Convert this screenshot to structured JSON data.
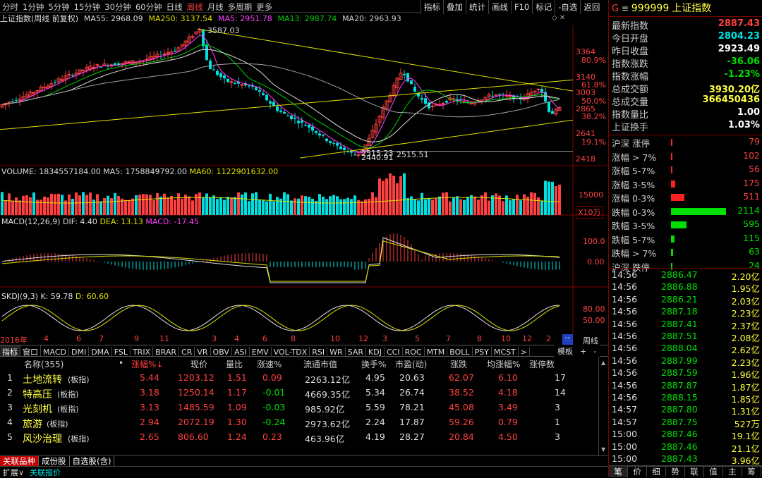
{
  "colors": {
    "up": "#ff4040",
    "down": "#00e0e0",
    "ma_white": "#e0e0e0",
    "ma_yellow": "#e0e000",
    "ma_magenta": "#ff40ff",
    "ma_green": "#00d000",
    "text_yellow": "#ffff40",
    "panel_border": "#800000"
  },
  "toolbar": {
    "periods": [
      "分时",
      "1分钟",
      "5分钟",
      "15分钟",
      "30分钟",
      "60分钟",
      "日线",
      "周线",
      "月线",
      "多周期",
      "更多"
    ],
    "active": "周线",
    "tools": [
      "指标",
      "叠加",
      "统计",
      "画线",
      "F10",
      "标记",
      "-自选",
      "返回"
    ]
  },
  "chart_title": {
    "name": "上证指数(周线 前复权)",
    "ma55": "MA55: 2968.09",
    "ma250": "MA250: 3137.54",
    "ma5": "MA5: 2951.78",
    "ma13": "MA13: 2987.74",
    "ma20": "MA20: 2963.93"
  },
  "price_axis": {
    "ticks": [
      "3364",
      "3140",
      "3003",
      "2865",
      "2641",
      "2418"
    ],
    "pcts": [
      "80.9%",
      "61.8%",
      "50.0%",
      "38.2%",
      "19.1%"
    ],
    "high_label": "3587.03",
    "low_label": "2515.51",
    "low_label2": "2440.91",
    "low_label3": "2515.23"
  },
  "volume": {
    "title": "VOLUME: 1834557184.00",
    "ma5": "MA5: 1758849792.00",
    "ma60": "MA60: 1122901632.00",
    "tick": "15000",
    "unit": "X10万"
  },
  "macd": {
    "title": "MACD(12,26,9)",
    "dif": "DIF: 4.40",
    "dea": "DEA: 13.13",
    "macd": "MACD: -17.45",
    "ticks": [
      "100.0",
      "0.00"
    ]
  },
  "skdj": {
    "title": "SKDJ(9,3)",
    "k": "K: 59.78",
    "d": "D: 60.60",
    "ticks": [
      "80.00",
      "50.00"
    ]
  },
  "xaxis": {
    "labels": [
      "2016年",
      "4",
      "6",
      "7",
      "9",
      "11",
      "3",
      "4",
      "6",
      "8",
      "10",
      "12",
      "3",
      "5",
      "7",
      "8",
      "10",
      "12",
      "2"
    ]
  },
  "xaxis_right": {
    "unit": "周线"
  },
  "indicator_tabs": {
    "items": [
      "指标",
      "窗口",
      "MACD",
      "DMI",
      "DMA",
      "FSL",
      "TRIX",
      "BRAR",
      "CR",
      "VR",
      "OBV",
      "ASI",
      "EMV",
      "VOL-TDX",
      "RSI",
      "WR",
      "SAR",
      "KDJ",
      "CCI",
      "ROC",
      "MTM",
      "BOLL",
      "PSY",
      "MCST",
      ">"
    ],
    "right": [
      "模板",
      "+",
      "-"
    ]
  },
  "table": {
    "headers": [
      "名称(355)",
      "•",
      "涨幅%↓",
      "现价",
      "量比",
      "涨速%",
      "流通市值",
      "换手%",
      "市盈(动)",
      "涨跌",
      "均涨幅%",
      "涨停数"
    ],
    "rows": [
      {
        "idx": "1",
        "name": "土地流转",
        "tag": "(板指)",
        "chg": "5.44",
        "price": "1203.12",
        "vr": "1.51",
        "speed": "0.09",
        "cap": "2263.12亿",
        "turn": "4.95",
        "pe": "20.63",
        "diff": "62.07",
        "avg": "6.10",
        "limit": "17"
      },
      {
        "idx": "2",
        "name": "特高压",
        "tag": "(板指)",
        "chg": "3.18",
        "price": "1250.14",
        "vr": "1.17",
        "speed": "-0.01",
        "cap": "4669.35亿",
        "turn": "5.34",
        "pe": "26.74",
        "diff": "38.52",
        "avg": "4.18",
        "limit": "14"
      },
      {
        "idx": "3",
        "name": "光刻机",
        "tag": "(板指)",
        "chg": "3.13",
        "price": "1485.59",
        "vr": "1.09",
        "speed": "-0.03",
        "cap": "985.92亿",
        "turn": "5.59",
        "pe": "78.21",
        "diff": "45.08",
        "avg": "3.49",
        "limit": "3"
      },
      {
        "idx": "4",
        "name": "旅游",
        "tag": "(板指)",
        "chg": "2.94",
        "price": "2072.19",
        "vr": "1.30",
        "speed": "-0.24",
        "cap": "2973.62亿",
        "turn": "2.24",
        "pe": "17.87",
        "diff": "59.26",
        "avg": "0.79",
        "limit": "1"
      },
      {
        "idx": "5",
        "name": "风沙治理",
        "tag": "(板指)",
        "chg": "2.65",
        "price": "806.60",
        "vr": "1.24",
        "speed": "0.23",
        "cap": "463.96亿",
        "turn": "4.19",
        "pe": "28.27",
        "diff": "20.84",
        "avg": "4.50",
        "limit": "3"
      }
    ]
  },
  "bottom_tabs": [
    "关联品种",
    "成份股",
    "自选股(含)"
  ],
  "status": [
    "扩展∨",
    "关联报价"
  ],
  "right_panel": {
    "g": "G",
    "code": "999999",
    "name": "上证指数",
    "stats": [
      {
        "k": "最新指数",
        "v": "2887.43",
        "c": "up"
      },
      {
        "k": "今日开盘",
        "v": "2804.23",
        "c": "down"
      },
      {
        "k": "昨日收盘",
        "v": "2923.49",
        "c": "white"
      },
      {
        "k": "指数涨跌",
        "v": "-36.06",
        "c": "green"
      },
      {
        "k": "指数涨幅",
        "v": "-1.23%",
        "c": "green"
      },
      {
        "k": "总成交额",
        "v": "3930.20亿",
        "c": "yellow"
      },
      {
        "k": "总成交量",
        "v": "366450436",
        "c": "yellow"
      },
      {
        "k": "指数量比",
        "v": "1.00",
        "c": "white"
      },
      {
        "k": "上证换手",
        "v": "1.03%",
        "c": "white"
      }
    ],
    "breadth": [
      {
        "k": "沪深 涨停",
        "v": "79",
        "c": "up",
        "w": 2
      },
      {
        "k": "涨幅 > 7%",
        "v": "102",
        "c": "up",
        "w": 2
      },
      {
        "k": "涨幅 5-7%",
        "v": "56",
        "c": "up",
        "w": 2
      },
      {
        "k": "涨幅 3-5%",
        "v": "175",
        "c": "up",
        "w": 6
      },
      {
        "k": "涨幅 0-3%",
        "v": "511",
        "c": "up",
        "w": 19
      },
      {
        "k": "跌幅 0-3%",
        "v": "2114",
        "c": "green",
        "w": 78
      },
      {
        "k": "跌幅 3-5%",
        "v": "595",
        "c": "green",
        "w": 22
      },
      {
        "k": "跌幅 5-7%",
        "v": "115",
        "c": "green",
        "w": 5
      },
      {
        "k": "跌幅 > 7%",
        "v": "63",
        "c": "green",
        "w": 3
      },
      {
        "k": "沪深 跌停",
        "v": "24",
        "c": "green",
        "w": 2
      }
    ],
    "trades": [
      {
        "t": "14:56",
        "p": "2886.47",
        "a": "2.20亿"
      },
      {
        "t": "14:56",
        "p": "2886.88",
        "a": "1.95亿"
      },
      {
        "t": "14:56",
        "p": "2886.21",
        "a": "2.03亿"
      },
      {
        "t": "14:56",
        "p": "2887.18",
        "a": "2.23亿"
      },
      {
        "t": "14:56",
        "p": "2887.41",
        "a": "2.37亿"
      },
      {
        "t": "14:56",
        "p": "2887.51",
        "a": "2.08亿"
      },
      {
        "t": "14:56",
        "p": "2888.04",
        "a": "2.62亿"
      },
      {
        "t": "14:56",
        "p": "2887.99",
        "a": "2.23亿"
      },
      {
        "t": "14:56",
        "p": "2887.59",
        "a": "1.96亿"
      },
      {
        "t": "14:56",
        "p": "2887.87",
        "a": "1.87亿"
      },
      {
        "t": "14:56",
        "p": "2888.15",
        "a": "1.85亿"
      },
      {
        "t": "14:57",
        "p": "2887.80",
        "a": "1.31亿"
      },
      {
        "t": "14:57",
        "p": "2887.75",
        "a": "527万"
      },
      {
        "t": "15:00",
        "p": "2887.46",
        "a": "19.1亿"
      },
      {
        "t": "15:00",
        "p": "2887.46",
        "a": "21.1亿"
      },
      {
        "t": "15:00",
        "p": "2887.43",
        "a": "3.96亿"
      }
    ],
    "tabs": [
      "笔",
      "价",
      "细",
      "势",
      "联",
      "值",
      "主",
      "筹"
    ]
  }
}
